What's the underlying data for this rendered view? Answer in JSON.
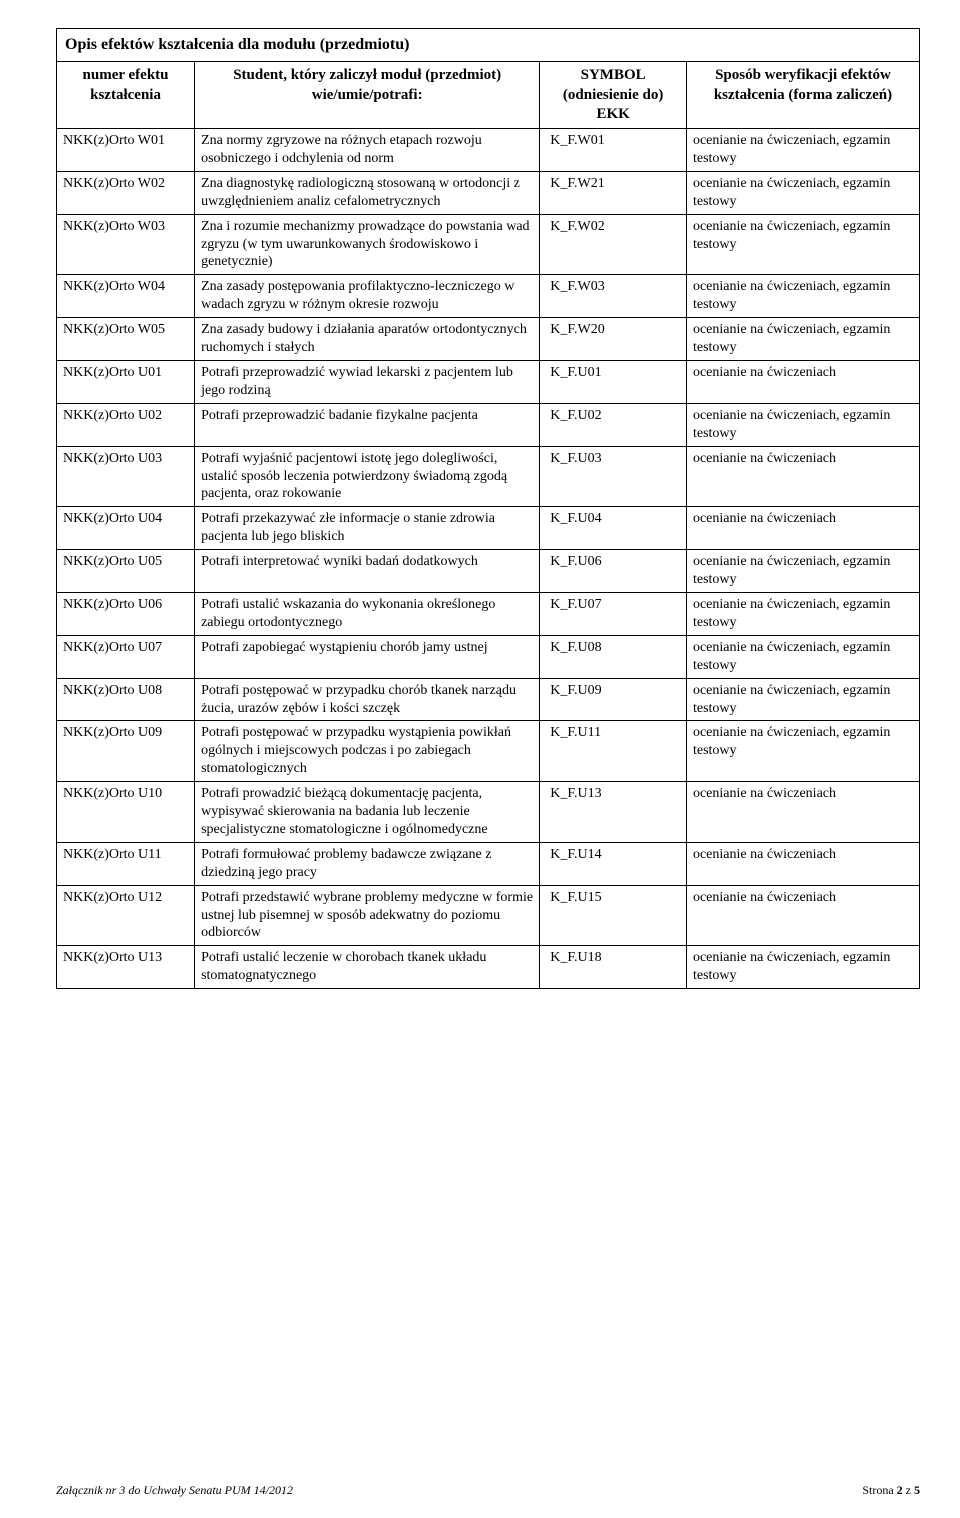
{
  "title": "Opis efektów kształcenia dla modułu (przedmiotu)",
  "headers": {
    "col1": "numer efektu kształcenia",
    "col2": "Student, który zaliczył moduł (przedmiot) wie/umie/potrafi:",
    "col3": "SYMBOL (odniesienie do) EKK",
    "col4": "Sposób weryfikacji efektów kształcenia (forma zaliczeń)"
  },
  "rows": [
    {
      "c1": "NKK(z)Orto W01",
      "c2": "Zna normy zgryzowe na różnych etapach rozwoju osobniczego i odchylenia od norm",
      "c3": "K_F.W01",
      "c4": "ocenianie na ćwiczeniach, egzamin testowy"
    },
    {
      "c1": "NKK(z)Orto W02",
      "c2": "Zna diagnostykę radiologiczną stosowaną w ortodoncji z uwzględnieniem analiz cefalometrycznych",
      "c3": "K_F.W21",
      "c4": "ocenianie na ćwiczeniach, egzamin testowy"
    },
    {
      "c1": "NKK(z)Orto W03",
      "c2": "Zna i rozumie mechanizmy prowadzące do powstania wad zgryzu (w tym uwarunkowanych środowiskowo i genetycznie)",
      "c3": "K_F.W02",
      "c4": "ocenianie na ćwiczeniach, egzamin testowy"
    },
    {
      "c1": "NKK(z)Orto W04",
      "c2": "Zna zasady postępowania profilaktyczno-leczniczego w wadach zgryzu w różnym okresie rozwoju",
      "c3": "K_F.W03",
      "c4": "ocenianie na ćwiczeniach, egzamin testowy"
    },
    {
      "c1": "NKK(z)Orto W05",
      "c2": "Zna zasady budowy i działania aparatów ortodontycznych ruchomych i stałych",
      "c3": "K_F.W20",
      "c4": "ocenianie na ćwiczeniach, egzamin testowy"
    },
    {
      "c1": "NKK(z)Orto U01",
      "c2": "Potrafi przeprowadzić wywiad lekarski z pacjentem lub jego rodziną",
      "c3": "K_F.U01",
      "c4": "ocenianie na ćwiczeniach"
    },
    {
      "c1": "NKK(z)Orto U02",
      "c2": "Potrafi przeprowadzić badanie fizykalne pacjenta",
      "c3": "K_F.U02",
      "c4": "ocenianie na ćwiczeniach, egzamin testowy"
    },
    {
      "c1": "NKK(z)Orto U03",
      "c2": "Potrafi wyjaśnić pacjentowi istotę jego dolegliwości, ustalić sposób leczenia potwierdzony świadomą zgodą pacjenta, oraz rokowanie",
      "c3": "K_F.U03",
      "c4": "ocenianie na ćwiczeniach"
    },
    {
      "c1": "NKK(z)Orto U04",
      "c2": "Potrafi przekazywać złe informacje o stanie zdrowia pacjenta lub jego bliskich",
      "c3": "K_F.U04",
      "c4": "ocenianie na ćwiczeniach"
    },
    {
      "c1": "NKK(z)Orto U05",
      "c2": "Potrafi interpretować wyniki badań dodatkowych",
      "c3": "K_F.U06",
      "c4": "ocenianie na ćwiczeniach, egzamin testowy"
    },
    {
      "c1": "NKK(z)Orto U06",
      "c2": "Potrafi ustalić wskazania do wykonania określonego zabiegu ortodontycznego",
      "c3": "K_F.U07",
      "c4": "ocenianie na ćwiczeniach, egzamin testowy"
    },
    {
      "c1": "NKK(z)Orto U07",
      "c2": "Potrafi zapobiegać wystąpieniu chorób jamy ustnej",
      "c3": "K_F.U08",
      "c4": "ocenianie na ćwiczeniach, egzamin testowy"
    },
    {
      "c1": "NKK(z)Orto U08",
      "c2": "Potrafi postępować w przypadku chorób tkanek narządu żucia, urazów zębów i kości szczęk",
      "c3": "K_F.U09",
      "c4": "ocenianie na ćwiczeniach, egzamin testowy"
    },
    {
      "c1": "NKK(z)Orto U09",
      "c2": "Potrafi postępować w przypadku wystąpienia powikłań ogólnych i miejscowych podczas i po zabiegach stomatologicznych",
      "c3": "K_F.U11",
      "c4": "ocenianie na ćwiczeniach, egzamin testowy"
    },
    {
      "c1": "NKK(z)Orto U10",
      "c2": "Potrafi prowadzić bieżącą dokumentację pacjenta, wypisywać skierowania na badania lub leczenie specjalistyczne stomatologiczne i ogólnomedyczne",
      "c3": "K_F.U13",
      "c4": "ocenianie na ćwiczeniach"
    },
    {
      "c1": "NKK(z)Orto U11",
      "c2": "Potrafi formułować problemy badawcze związane z dziedziną jego pracy",
      "c3": "K_F.U14",
      "c4": "ocenianie na ćwiczeniach"
    },
    {
      "c1": "NKK(z)Orto U12",
      "c2": "Potrafi przedstawić wybrane problemy medyczne w formie ustnej lub pisemnej w sposób adekwatny do poziomu odbiorców",
      "c3": "K_F.U15",
      "c4": "ocenianie na ćwiczeniach"
    },
    {
      "c1": "NKK(z)Orto U13",
      "c2": "Potrafi ustalić leczenie w chorobach tkanek układu stomatognatycznego",
      "c3": "K_F.U18",
      "c4": "ocenianie na ćwiczeniach, egzamin testowy"
    }
  ],
  "footer": {
    "left": "Załącznik nr 3 do Uchwały  Senatu PUM 14/2012",
    "right_prefix": "Strona ",
    "page_current": "2",
    "right_mid": " z ",
    "page_total": "5"
  }
}
